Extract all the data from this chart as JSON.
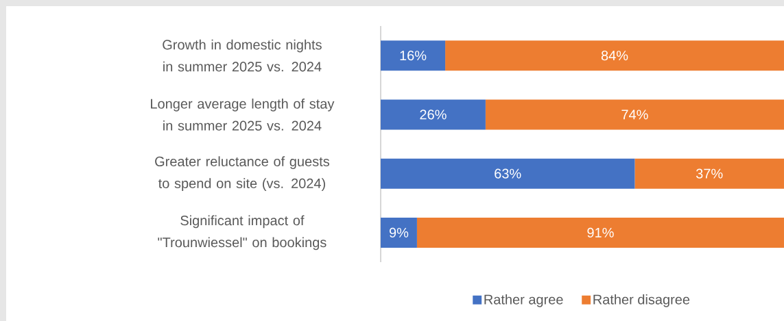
{
  "chart_data": {
    "type": "bar",
    "orientation": "horizontal",
    "stacked": true,
    "categories": [
      "Growth in domestic nights in summer 2025 vs. 2024",
      "Longer average length of stay in summer 2025 vs. 2024",
      "Greater reluctance of guests to spend on site (vs. 2024)",
      "Significant impact of \"Trounwiessel\" on bookings"
    ],
    "xlim": [
      0,
      100
    ],
    "tick_labels": "y",
    "legend": "bottom",
    "series": [
      {
        "name": "Rather agree",
        "color": "#4472c4",
        "values": [
          16,
          26,
          63,
          9
        ],
        "value_labels": [
          "16%",
          "26%",
          "63%",
          "9%"
        ]
      },
      {
        "name": "Rather disagree",
        "color": "#ed7d31",
        "values": [
          84,
          74,
          37,
          91
        ],
        "value_labels": [
          "84%",
          "74%",
          "37%",
          "91%"
        ]
      }
    ]
  }
}
